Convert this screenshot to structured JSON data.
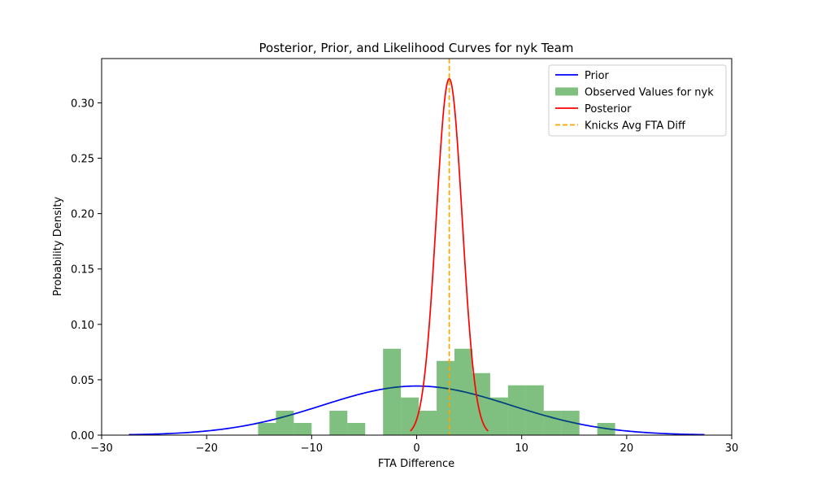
{
  "chart_data": {
    "type": "line",
    "title": "Posterior, Prior, and Likelihood Curves for nyk Team",
    "xlabel": "FTA Difference",
    "ylabel": "Probability Density",
    "xlim": [
      -30,
      30
    ],
    "ylim": [
      0,
      0.34
    ],
    "x_ticks": [
      -30,
      -20,
      -10,
      0,
      10,
      20,
      30
    ],
    "y_ticks": [
      0.0,
      0.05,
      0.1,
      0.15,
      0.2,
      0.25,
      0.3
    ],
    "x_tick_labels": [
      "−30",
      "−20",
      "−10",
      "0",
      "10",
      "20",
      "30"
    ],
    "y_tick_labels": [
      "0.00",
      "0.05",
      "0.10",
      "0.15",
      "0.20",
      "0.25",
      "0.30"
    ],
    "legend_position": "top-right",
    "series": [
      {
        "name": "Prior",
        "kind": "normal-curve",
        "color": "#0000ff",
        "mean": 0,
        "std": 9.0,
        "x_range": [
          -27.4,
          27.4
        ]
      },
      {
        "name": "Observed Values for nyk",
        "kind": "histogram",
        "color": "#008000",
        "bin_width": 1.7,
        "bins": [
          {
            "x0": -15.1,
            "x1": -13.4,
            "value": 0.011
          },
          {
            "x0": -13.4,
            "x1": -11.7,
            "value": 0.022
          },
          {
            "x0": -11.7,
            "x1": -10.0,
            "value": 0.011
          },
          {
            "x0": -8.3,
            "x1": -6.6,
            "value": 0.022
          },
          {
            "x0": -6.6,
            "x1": -4.9,
            "value": 0.011
          },
          {
            "x0": -3.2,
            "x1": -1.5,
            "value": 0.078
          },
          {
            "x0": -1.5,
            "x1": 0.2,
            "value": 0.034
          },
          {
            "x0": 0.2,
            "x1": 1.9,
            "value": 0.022
          },
          {
            "x0": 1.9,
            "x1": 3.6,
            "value": 0.067
          },
          {
            "x0": 3.6,
            "x1": 5.3,
            "value": 0.078
          },
          {
            "x0": 5.3,
            "x1": 7.0,
            "value": 0.056
          },
          {
            "x0": 7.0,
            "x1": 8.7,
            "value": 0.034
          },
          {
            "x0": 8.7,
            "x1": 10.4,
            "value": 0.045
          },
          {
            "x0": 10.4,
            "x1": 12.1,
            "value": 0.045
          },
          {
            "x0": 12.1,
            "x1": 13.8,
            "value": 0.022
          },
          {
            "x0": 13.8,
            "x1": 15.5,
            "value": 0.022
          },
          {
            "x0": 17.2,
            "x1": 18.9,
            "value": 0.011
          }
        ]
      },
      {
        "name": "Posterior",
        "kind": "normal-curve",
        "color": "#ff0000",
        "mean": 3.1,
        "std": 1.24,
        "x_range": [
          -0.6,
          6.8
        ]
      },
      {
        "name": "Knicks Avg FTA Diff",
        "kind": "vline",
        "color": "#ffa500",
        "x": 3.1
      }
    ]
  }
}
